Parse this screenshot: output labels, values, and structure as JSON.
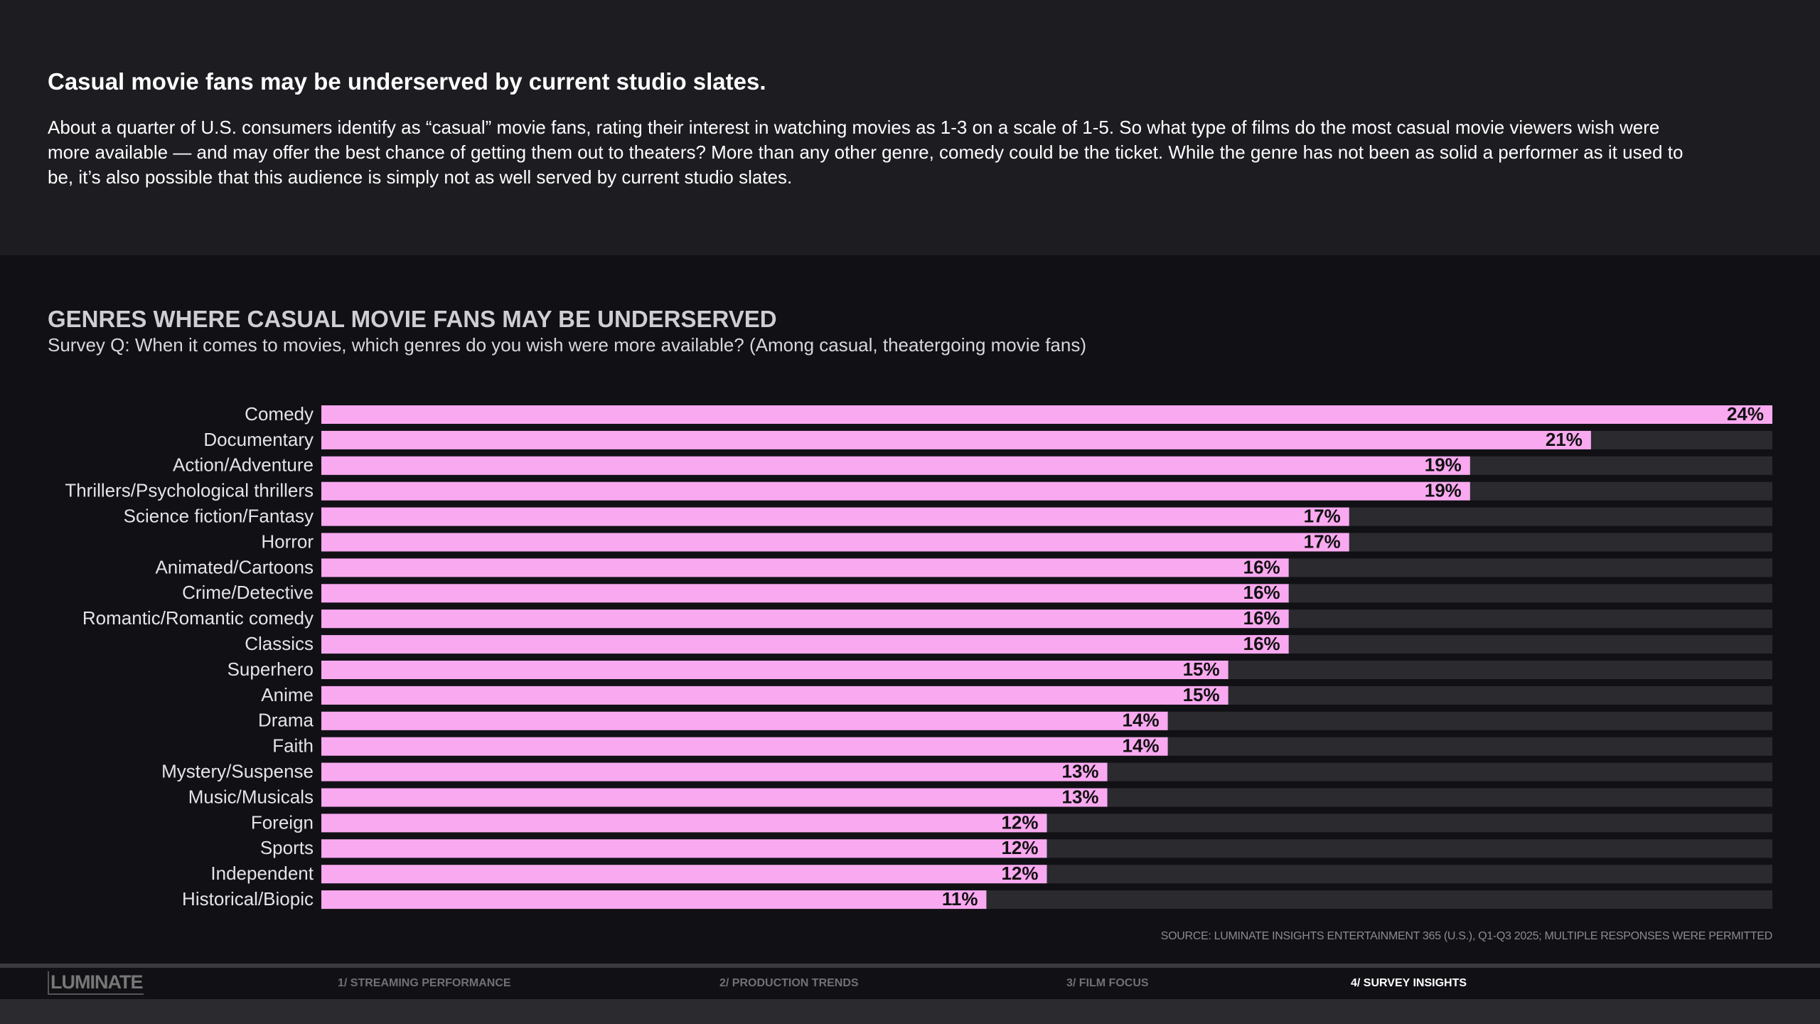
{
  "header": {
    "title": "Casual movie fans may be underserved by current studio slates.",
    "body": "About a quarter of U.S. consumers identify as “casual” movie fans, rating their interest in watching movies as 1-3 on a scale of 1-5. So what type of films do the most casual movie viewers wish were more available — and may offer the best chance of getting them out to theaters? More than any other genre, comedy could be the ticket. While the genre has not been as solid a performer as it used to be, it’s also possible that this audience is simply not as well served by current studio slates."
  },
  "chart_data": {
    "type": "hbar",
    "title": "GENRES WHERE CASUAL MOVIE FANS MAY BE UNDERSERVED",
    "subtitle": "Survey Q: When it comes to movies, which genres do you wish were more available? (Among casual, theatergoing movie fans)",
    "categories": [
      "Comedy",
      "Documentary",
      "Action/Adventure",
      "Thrillers/Psychological thrillers",
      "Science fiction/Fantasy",
      "Horror",
      "Animated/Cartoons",
      "Crime/Detective",
      "Romantic/Romantic comedy",
      "Classics",
      "Superhero",
      "Anime",
      "Drama",
      "Faith",
      "Mystery/Suspense",
      "Music/Musicals",
      "Foreign",
      "Sports",
      "Independent",
      "Historical/Biopic"
    ],
    "values": [
      24,
      21,
      19,
      19,
      17,
      17,
      16,
      16,
      16,
      16,
      15,
      15,
      14,
      14,
      13,
      13,
      12,
      12,
      12,
      11
    ],
    "value_labels": [
      "24%",
      "21%",
      "19%",
      "19%",
      "17%",
      "17%",
      "16%",
      "16%",
      "16%",
      "16%",
      "15%",
      "15%",
      "14%",
      "14%",
      "13%",
      "13%",
      "12%",
      "12%",
      "12%",
      "11%"
    ],
    "xlim": [
      0,
      24
    ],
    "color": "#f9a9f0",
    "track_color": "#2a2a2f",
    "source": "SOURCE: LUMINATE INSIGHTS ENTERTAINMENT 365 (U.S.), Q1-Q3 2025; MULTIPLE RESPONSES WERE PERMITTED"
  },
  "footer": {
    "logo": "LUMINATE",
    "nav": [
      "1/ STREAMING PERFORMANCE",
      "2/ PRODUCTION TRENDS",
      "3/ FILM FOCUS",
      "4/ SURVEY INSIGHTS"
    ],
    "active": 3
  }
}
